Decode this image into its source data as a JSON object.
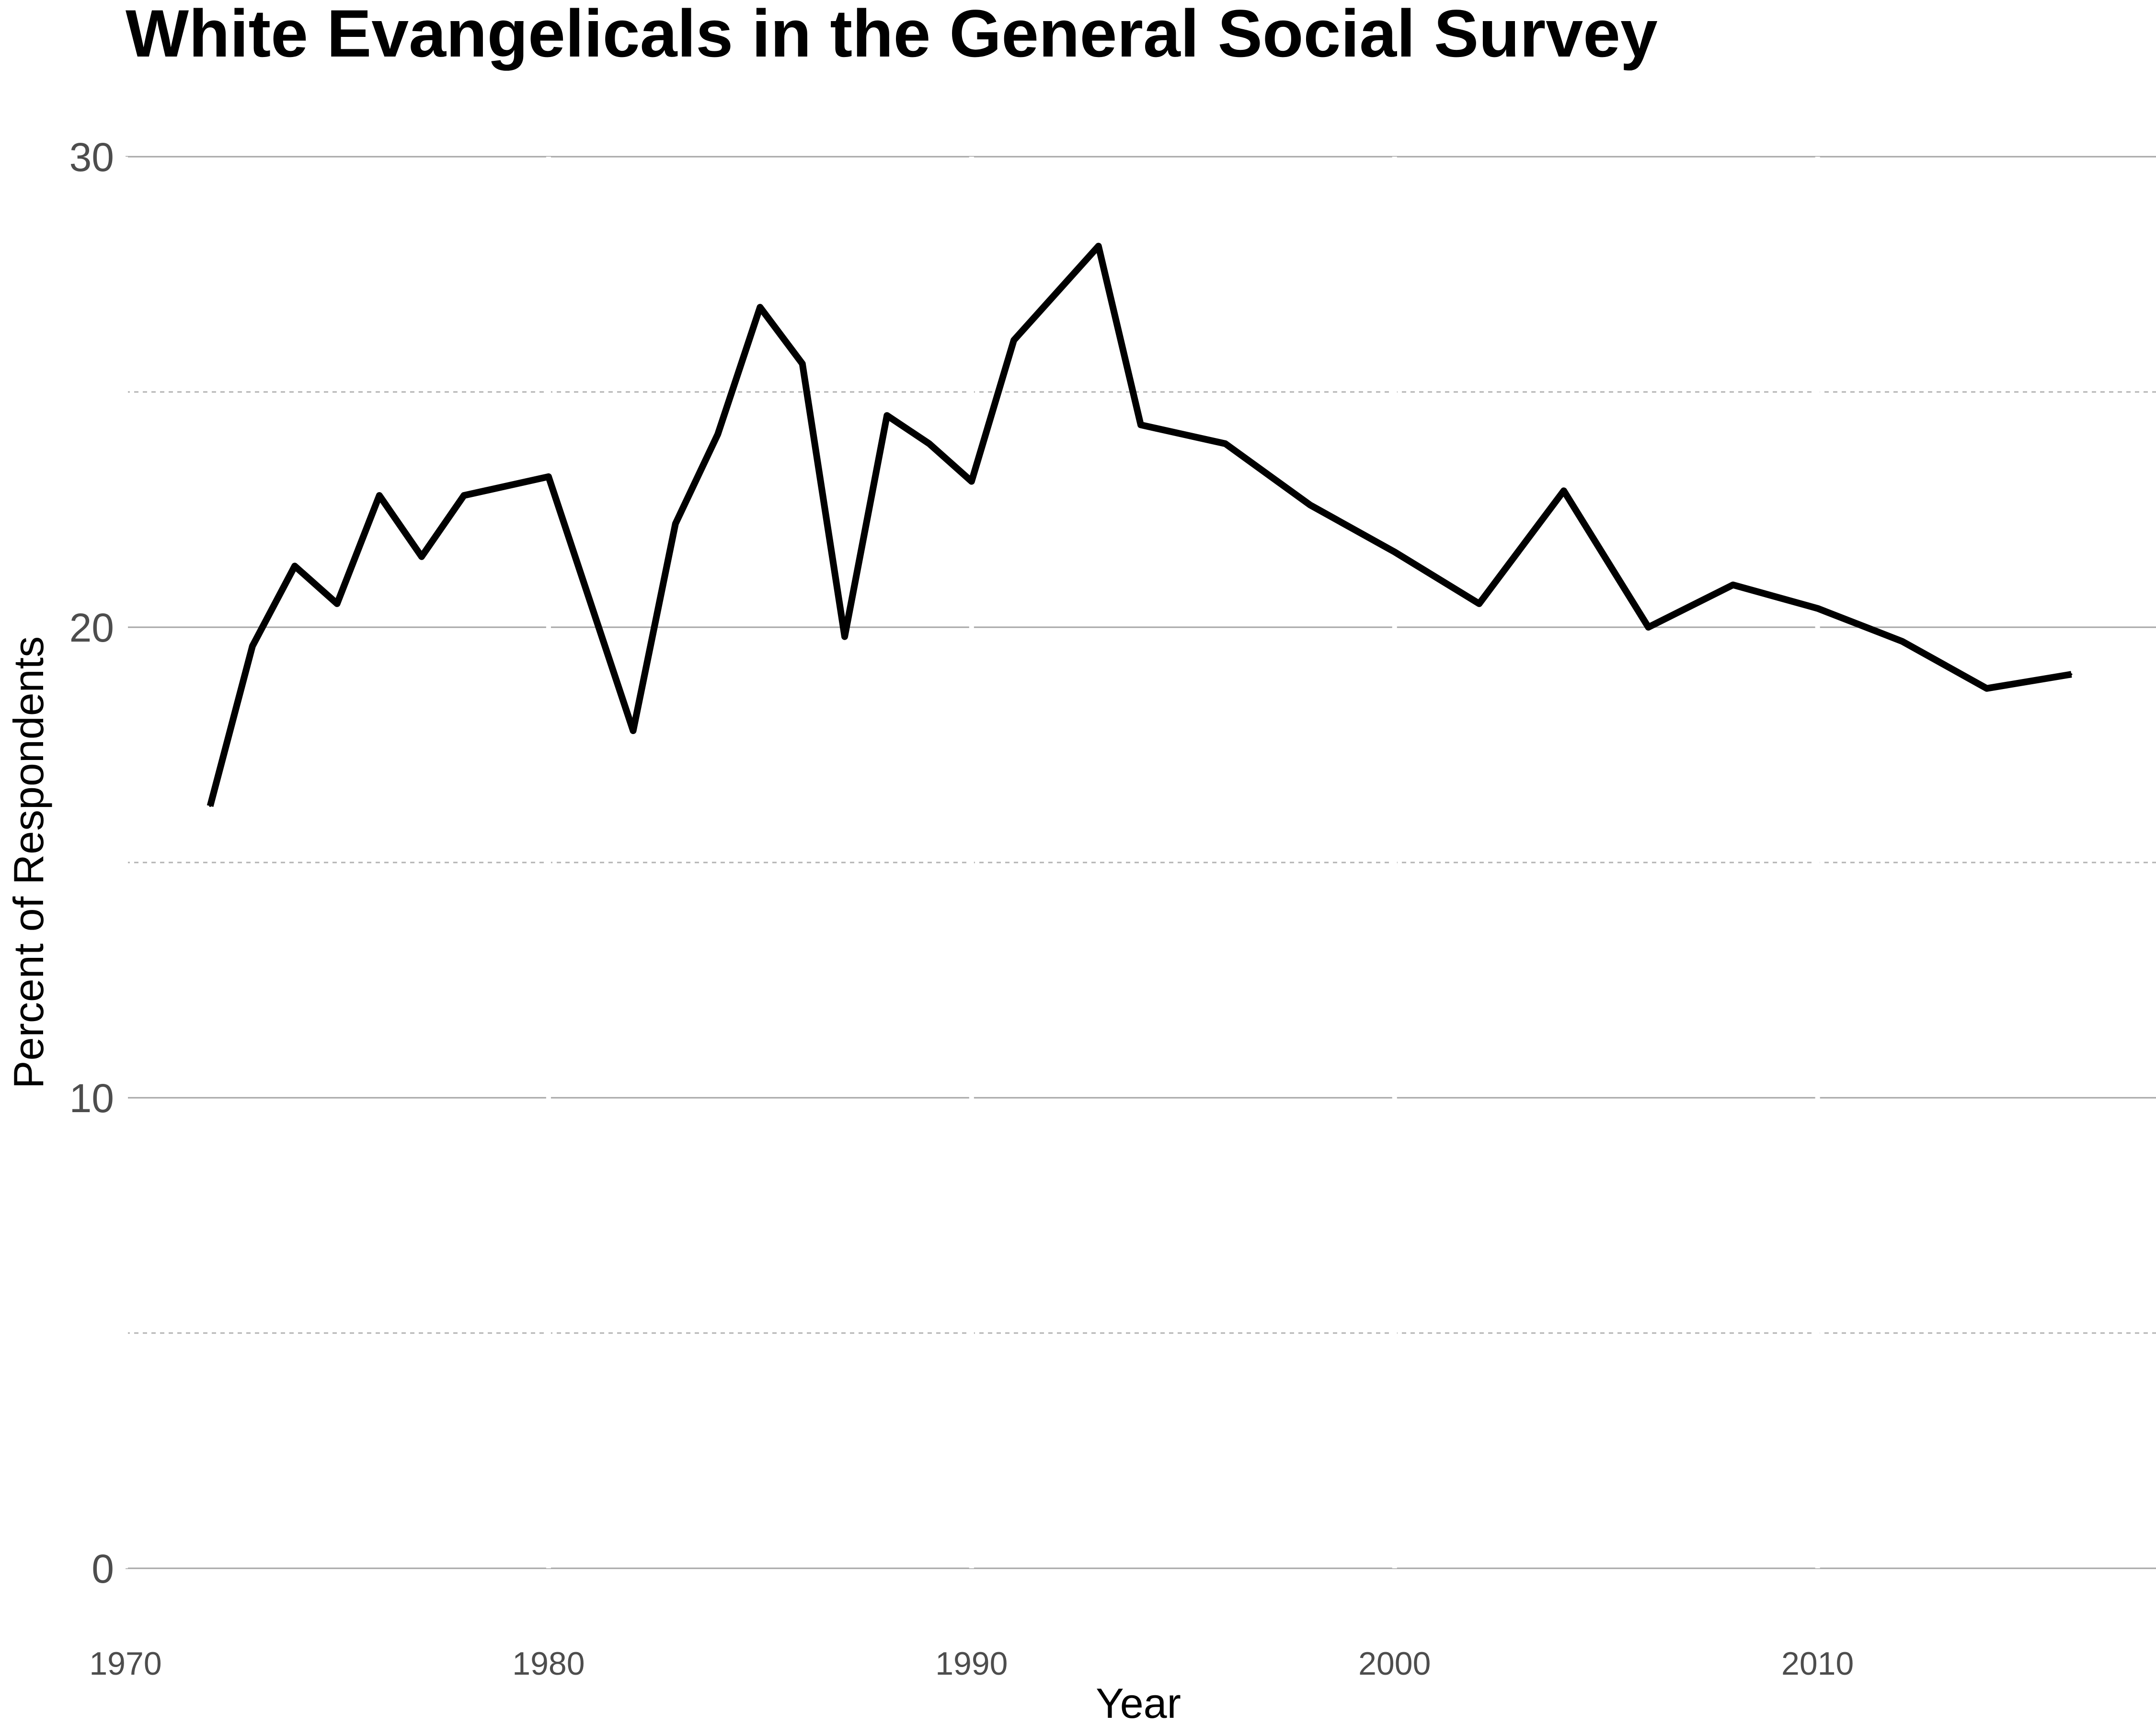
{
  "chart_data": {
    "type": "line",
    "title": "White Evangelicals in the General Social Survey",
    "xlabel": "Year",
    "ylabel": "Percent of Respondents",
    "xlim": [
      1970,
      2018
    ],
    "ylim": [
      0,
      30
    ],
    "x_ticks": [
      "1970",
      "1980",
      "1990",
      "2000",
      "2010"
    ],
    "y_ticks": [
      "0",
      "10",
      "20",
      "30"
    ],
    "grid": true,
    "line_color": "#000000",
    "series": [
      {
        "x": [
          1972,
          1973,
          1974,
          1975,
          1976,
          1977,
          1978,
          1980,
          1982,
          1983,
          1984,
          1985,
          1986,
          1987,
          1988,
          1989,
          1990,
          1991,
          1993,
          1994,
          1996,
          1998,
          2000,
          2002,
          2004,
          2006,
          2008,
          2010,
          2012,
          2014,
          2016
        ],
        "values": [
          16.2,
          19.6,
          21.3,
          20.5,
          22.8,
          21.5,
          22.8,
          23.2,
          17.8,
          22.2,
          24.1,
          26.8,
          25.6,
          19.8,
          24.5,
          23.9,
          23.1,
          26.1,
          28.1,
          24.3,
          23.9,
          22.6,
          21.6,
          20.5,
          22.9,
          20.0,
          20.9,
          20.4,
          19.7,
          18.7,
          19.0
        ]
      }
    ]
  }
}
